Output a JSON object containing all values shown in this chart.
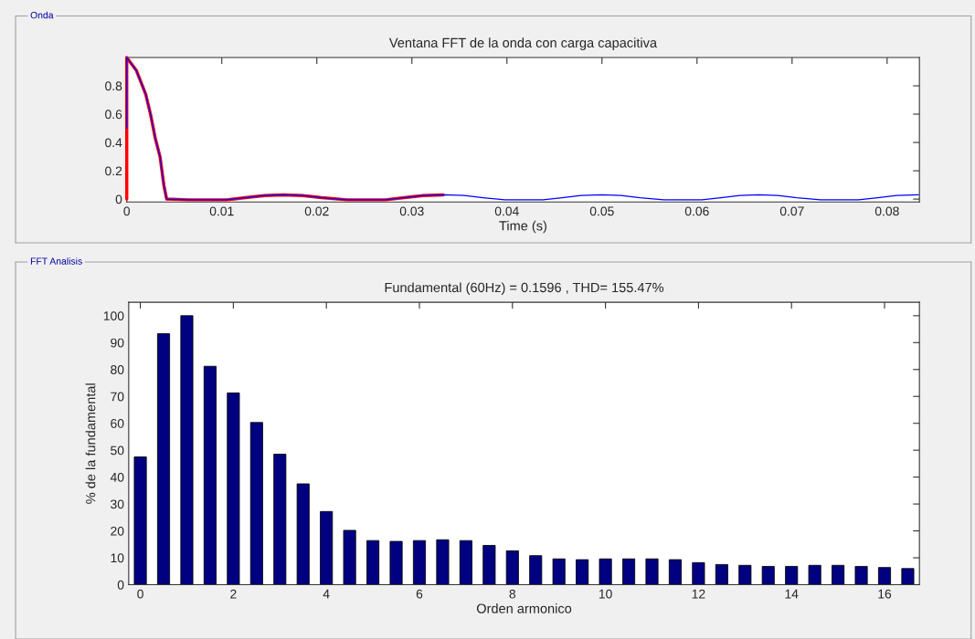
{
  "chart_data": [
    {
      "type": "line",
      "title": "Ventana FFT de la onda con carga capacitiva",
      "xlabel": "Time (s)",
      "annotations": [
        "Onda"
      ],
      "xlim": [
        0,
        0.0834
      ],
      "ylim": [
        -0.02,
        1.0
      ],
      "xticks": [
        0,
        0.01,
        0.02,
        0.03,
        0.04,
        0.05,
        0.06,
        0.07,
        0.08
      ],
      "yticks": [
        0,
        0.2,
        0.4,
        0.6,
        0.8
      ],
      "grid": false,
      "line_style": "solid",
      "marker": "none",
      "series": [
        {
          "color": "#0000ff",
          "x": [
            0,
            0,
            0.001,
            0.002,
            0.0025,
            0.003,
            0.0035,
            0.0039,
            0.0042,
            0.0065,
            0.0105,
            0.0125,
            0.0145,
            0.0165,
            0.0185,
            0.0205,
            0.0232,
            0.0272,
            0.0292,
            0.0312,
            0.0335,
            0.0355,
            0.0375,
            0.0398,
            0.0438,
            0.0458,
            0.0478,
            0.05,
            0.052,
            0.054,
            0.0565,
            0.0605,
            0.0625,
            0.0645,
            0.0665,
            0.0685,
            0.0705,
            0.073,
            0.077,
            0.079,
            0.081,
            0.0833
          ],
          "values": [
            0.5,
            1.0,
            0.91,
            0.74,
            0.6,
            0.43,
            0.3,
            0.1,
            0.0,
            -0.005,
            -0.005,
            0.01,
            0.025,
            0.03,
            0.025,
            0.01,
            -0.005,
            -0.005,
            0.01,
            0.025,
            0.03,
            0.025,
            0.01,
            -0.005,
            -0.005,
            0.01,
            0.025,
            0.03,
            0.025,
            0.01,
            -0.005,
            -0.005,
            0.01,
            0.025,
            0.03,
            0.025,
            0.01,
            -0.005,
            -0.005,
            0.01,
            0.025,
            0.03
          ]
        },
        {
          "color": "#ff0000",
          "x": [
            0,
            0,
            0.001,
            0.002,
            0.0025,
            0.003,
            0.0035,
            0.0039,
            0.0042,
            0.0065,
            0.0105,
            0.0125,
            0.0145,
            0.0165,
            0.0185,
            0.0205,
            0.0232,
            0.0272,
            0.0292,
            0.0312,
            0.0333
          ],
          "values": [
            0.0,
            1.0,
            0.91,
            0.74,
            0.6,
            0.43,
            0.3,
            0.1,
            0.0,
            -0.005,
            -0.005,
            0.01,
            0.025,
            0.03,
            0.025,
            0.01,
            -0.005,
            -0.005,
            0.01,
            0.025,
            0.03
          ]
        }
      ]
    },
    {
      "type": "bar",
      "title": "Fundamental (60Hz) = 0.1596 , THD= 155.47%",
      "xlabel": "Orden armonico",
      "ylabel": "% de la fundamental",
      "annotations": [
        "FFT Analisis"
      ],
      "xlim": [
        -0.25,
        16.75
      ],
      "ylim": [
        0,
        105
      ],
      "xticks": [
        0,
        2,
        4,
        6,
        8,
        10,
        12,
        14,
        16
      ],
      "yticks": [
        0,
        10,
        20,
        30,
        40,
        50,
        60,
        70,
        80,
        90,
        100
      ],
      "grid": false,
      "x": [
        0,
        0.5,
        1,
        1.5,
        2,
        2.5,
        3,
        3.5,
        4,
        4.5,
        5,
        5.5,
        6,
        6.5,
        7,
        7.5,
        8,
        8.5,
        9,
        9.5,
        10,
        10.5,
        11,
        11.5,
        12,
        12.5,
        13,
        13.5,
        14,
        14.5,
        15,
        15.5,
        16,
        16.5
      ],
      "series": [
        {
          "color": "#000080",
          "values": [
            47.5,
            93.3,
            100,
            81.2,
            71.3,
            60.3,
            48.5,
            37.5,
            27.2,
            20.2,
            16.4,
            16.1,
            16.4,
            16.7,
            16.4,
            14.6,
            12.6,
            10.8,
            9.6,
            9.3,
            9.6,
            9.6,
            9.6,
            9.3,
            8.2,
            7.5,
            7.2,
            6.8,
            6.8,
            7.2,
            7.2,
            6.8,
            6.4,
            6.0
          ]
        }
      ]
    }
  ]
}
